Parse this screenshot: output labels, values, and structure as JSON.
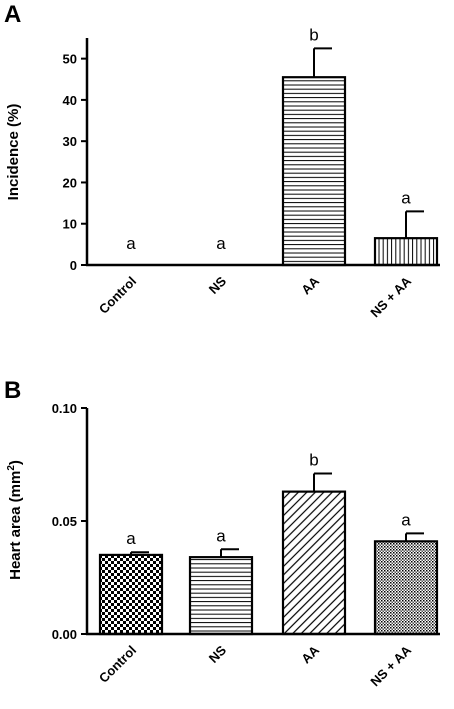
{
  "chart_data": [
    {
      "type": "bar",
      "panel_label": "A",
      "title": "",
      "xlabel": "",
      "ylabel": "Incidence (%)",
      "ylim": [
        0,
        55
      ],
      "yticks": [
        0,
        10,
        20,
        30,
        40,
        50
      ],
      "ytick_labels": [
        "0",
        "10",
        "20",
        "30",
        "40",
        "50"
      ],
      "grid": false,
      "categories": [
        "Control",
        "NS",
        "AA",
        "NS + AA"
      ],
      "values": [
        0,
        0,
        45.5,
        6.5
      ],
      "errors": [
        0,
        0,
        7,
        6.5
      ],
      "significance": [
        "a",
        "a",
        "b",
        "a"
      ],
      "patterns": [
        "none",
        "none",
        "horizontal-lines",
        "vertical-lines"
      ]
    },
    {
      "type": "bar",
      "panel_label": "B",
      "title": "",
      "xlabel": "",
      "ylabel": "Heart area (mm",
      "ylabel_sup": "2",
      "ylabel_end": ")",
      "ylim": [
        0,
        0.1
      ],
      "yticks": [
        0,
        0.05,
        0.1
      ],
      "ytick_labels": [
        "0.00",
        "0.05",
        "0.10"
      ],
      "grid": false,
      "categories": [
        "Control",
        "NS",
        "AA",
        "NS + AA"
      ],
      "values": [
        0.035,
        0.034,
        0.063,
        0.041
      ],
      "errors": [
        0.0012,
        0.0035,
        0.008,
        0.0035
      ],
      "significance": [
        "a",
        "a",
        "b",
        "a"
      ],
      "patterns": [
        "checkerboard",
        "horizontal-lines",
        "diagonal-lines",
        "fine-dots"
      ]
    }
  ]
}
